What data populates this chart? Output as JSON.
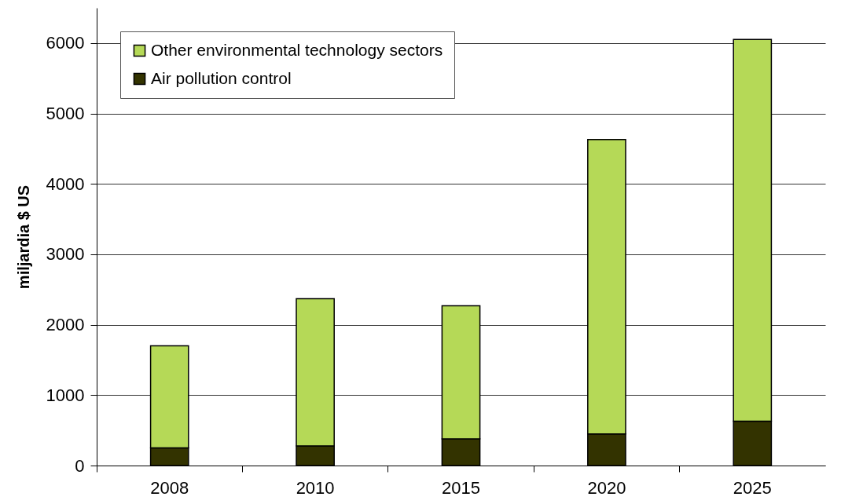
{
  "chart_data": {
    "type": "bar",
    "ylabel": "miljardia $ US",
    "categories": [
      "2008",
      "2010",
      "2015",
      "2020",
      "2025"
    ],
    "stacked": true,
    "series": [
      {
        "name": "Air pollution control",
        "color": "#333300",
        "values": [
          250,
          280,
          380,
          450,
          630
        ]
      },
      {
        "name": "Other environmental technology sectors",
        "color": "#b5d957",
        "values": [
          1450,
          2090,
          1890,
          4180,
          5420
        ]
      }
    ],
    "ylim": [
      0,
      6500
    ],
    "yticks": [
      0,
      1000,
      2000,
      3000,
      4000,
      5000,
      6000
    ],
    "grid": "y",
    "legend": "top left"
  }
}
